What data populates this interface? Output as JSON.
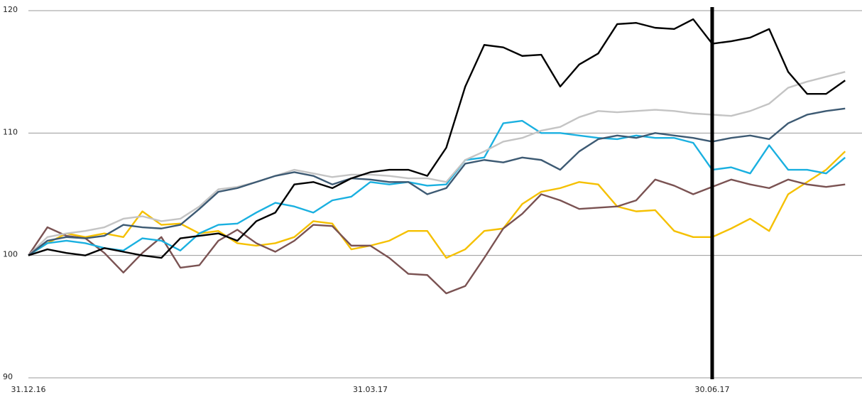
{
  "chart_data": {
    "type": "line",
    "categories": [
      "31.12.16",
      null,
      null,
      null,
      null,
      null,
      null,
      null,
      null,
      null,
      null,
      null,
      null,
      null,
      null,
      null,
      null,
      null,
      "31.03.17",
      null,
      null,
      null,
      null,
      null,
      null,
      null,
      null,
      null,
      null,
      null,
      null,
      null,
      null,
      null,
      null,
      null,
      "30.06.17",
      null,
      null,
      null,
      null,
      null,
      null,
      null
    ],
    "ylim": [
      90,
      120
    ],
    "yticks": [
      90,
      100,
      110,
      120
    ],
    "grid": true,
    "series": [
      {
        "color": "#f5c000",
        "values": [
          100,
          101,
          101.8,
          101.5,
          101.8,
          101.5,
          103.6,
          102.5,
          102.6,
          101.8,
          102,
          101,
          100.8,
          101,
          101.5,
          102.8,
          102.6,
          100.5,
          100.8,
          101.2,
          102,
          102,
          99.8,
          100.5,
          102,
          102.2,
          104.2,
          105.2,
          105.5,
          106,
          105.8,
          104,
          103.6,
          103.7,
          102,
          101.5,
          101.5,
          102.2,
          103,
          102,
          105,
          106,
          107,
          108.5
        ]
      },
      {
        "color": "#7a5252",
        "values": [
          100,
          102.3,
          101.6,
          101.4,
          100.2,
          98.6,
          100.2,
          101.5,
          99,
          99.2,
          101.2,
          102.1,
          101,
          100.3,
          101.2,
          102.5,
          102.4,
          100.8,
          100.8,
          99.8,
          98.5,
          98.4,
          96.9,
          97.5,
          99.8,
          102.2,
          103.4,
          105,
          104.5,
          103.8,
          103.9,
          104,
          104.5,
          106.2,
          105.7,
          105,
          105.6,
          106.2,
          105.8,
          105.5,
          106.2,
          105.8,
          105.6,
          105.8
        ]
      },
      {
        "color": "#1ab0e0",
        "values": [
          100,
          101,
          101.2,
          101,
          100.6,
          100.4,
          101.4,
          101.2,
          100.4,
          101.8,
          102.5,
          102.6,
          103.5,
          104.3,
          104,
          103.5,
          104.5,
          104.8,
          106,
          105.8,
          106,
          105.7,
          105.8,
          107.8,
          108,
          110.8,
          111,
          110,
          110,
          109.8,
          109.6,
          109.5,
          109.8,
          109.6,
          109.6,
          109.2,
          107,
          107.2,
          106.7,
          109,
          107,
          107,
          106.7,
          108
        ]
      },
      {
        "color": "#c4c4c4",
        "values": [
          100,
          101.5,
          101.8,
          102,
          102.3,
          103,
          103.2,
          102.8,
          103,
          104,
          105.4,
          105.6,
          106,
          106.5,
          107,
          106.7,
          106.4,
          106.6,
          106.6,
          106.5,
          106.3,
          106.3,
          106,
          107.8,
          108.5,
          109.3,
          109.6,
          110.2,
          110.5,
          111.3,
          111.8,
          111.7,
          111.8,
          111.9,
          111.8,
          111.6,
          111.5,
          111.4,
          111.8,
          112.4,
          113.7,
          114.2,
          114.6,
          115
        ]
      },
      {
        "color": "#3d5a73",
        "values": [
          100,
          101.2,
          101.5,
          101.4,
          101.6,
          102.5,
          102.3,
          102.2,
          102.5,
          103.8,
          105.2,
          105.5,
          106,
          106.5,
          106.8,
          106.5,
          105.8,
          106.3,
          106.2,
          106,
          106,
          105,
          105.5,
          107.5,
          107.8,
          107.6,
          108,
          107.8,
          107,
          108.5,
          109.5,
          109.8,
          109.6,
          110,
          109.8,
          109.6,
          109.3,
          109.6,
          109.8,
          109.5,
          110.8,
          111.5,
          111.8,
          112
        ]
      },
      {
        "color": "#000000",
        "values": [
          100,
          100.5,
          100.2,
          100,
          100.6,
          100.3,
          100,
          99.8,
          101.4,
          101.6,
          101.8,
          101.2,
          102.8,
          103.5,
          105.8,
          106,
          105.5,
          106.3,
          106.8,
          107,
          107,
          106.5,
          108.8,
          113.8,
          117.2,
          117,
          116.3,
          116.4,
          113.8,
          115.6,
          116.5,
          118.9,
          119,
          118.6,
          118.5,
          119.3,
          117.3,
          117.5,
          117.8,
          118.5,
          115,
          113.2,
          113.2,
          114.3
        ]
      }
    ]
  }
}
